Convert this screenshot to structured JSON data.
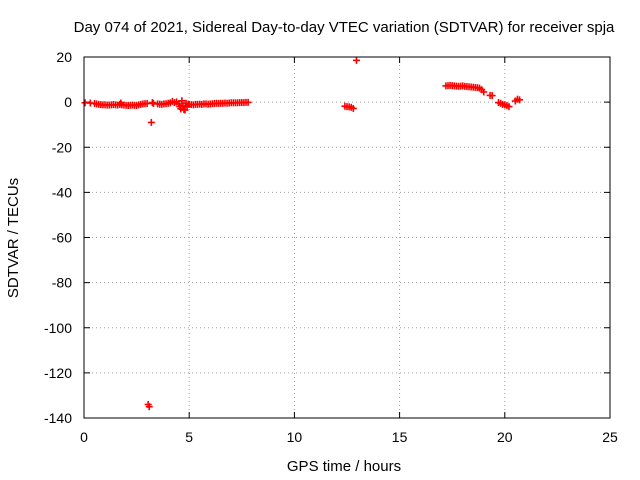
{
  "chart_data": {
    "type": "scatter",
    "title": "Day 074 of 2021, Sidereal Day-to-day VTEC variation (SDTVAR) for receiver spja",
    "xlabel": "GPS time / hours",
    "ylabel": "SDTVAR / TECUs",
    "xlim": [
      0,
      25
    ],
    "ylim": [
      -140,
      20
    ],
    "xticks": [
      0,
      5,
      10,
      15,
      20,
      25
    ],
    "yticks": [
      20,
      0,
      -20,
      -40,
      -60,
      -80,
      -100,
      -120,
      -140
    ],
    "grid": true,
    "marker": "+",
    "series": [
      {
        "name": "SDTVAR",
        "color": "#ff0000",
        "x": [
          0.05,
          0.3,
          0.5,
          0.6,
          0.7,
          0.8,
          0.9,
          1.0,
          1.1,
          1.2,
          1.3,
          1.4,
          1.5,
          1.6,
          1.7,
          1.75,
          1.8,
          1.9,
          2.0,
          2.1,
          2.2,
          2.3,
          2.4,
          2.5,
          2.6,
          2.7,
          2.8,
          2.9,
          3.0,
          3.05,
          3.1,
          3.2,
          3.25,
          3.3,
          3.5,
          3.6,
          3.7,
          3.8,
          3.9,
          4.0,
          4.1,
          4.2,
          4.3,
          4.4,
          4.5,
          4.55,
          4.6,
          4.65,
          4.7,
          4.75,
          4.8,
          4.85,
          4.9,
          4.95,
          5.0,
          5.1,
          5.2,
          5.3,
          5.4,
          5.5,
          5.6,
          5.7,
          5.8,
          5.9,
          6.0,
          6.1,
          6.2,
          6.3,
          6.4,
          6.5,
          6.6,
          6.7,
          6.8,
          6.9,
          7.0,
          7.1,
          7.2,
          7.3,
          7.4,
          7.5,
          7.6,
          7.7,
          7.8,
          12.4,
          12.5,
          12.6,
          12.7,
          12.8,
          12.95,
          17.2,
          17.3,
          17.4,
          17.5,
          17.6,
          17.7,
          17.8,
          17.9,
          18.0,
          18.1,
          18.2,
          18.3,
          18.4,
          18.5,
          18.6,
          18.7,
          18.8,
          18.9,
          19.0,
          19.3,
          19.4,
          19.7,
          19.8,
          19.9,
          20.0,
          20.1,
          20.2,
          20.5,
          20.6,
          20.7
        ],
        "y": [
          -0.3,
          -0.4,
          -0.6,
          -0.8,
          -1.0,
          -1.1,
          -1.2,
          -1.2,
          -1.3,
          -1.3,
          -1.2,
          -1.1,
          -1.2,
          -1.3,
          -1.0,
          -0.4,
          -1.2,
          -1.3,
          -1.4,
          -1.5,
          -1.4,
          -1.3,
          -1.4,
          -1.5,
          -1.2,
          -1.0,
          -0.8,
          -0.7,
          -0.6,
          -134.0,
          -135.0,
          -9.0,
          -0.2,
          -0.6,
          -0.8,
          -0.9,
          -1.0,
          -0.8,
          -0.7,
          -0.5,
          -0.3,
          0.3,
          -0.2,
          0.1,
          -0.8,
          -2.0,
          -3.0,
          0.6,
          -1.5,
          -3.3,
          -3.5,
          -0.5,
          -2.0,
          -0.9,
          -1.0,
          -1.1,
          -1.2,
          -1.0,
          -1.0,
          -0.9,
          -1.0,
          -0.8,
          -0.8,
          -0.9,
          -0.8,
          -0.7,
          -0.6,
          -0.5,
          -0.6,
          -0.5,
          -0.5,
          -0.4,
          -0.5,
          -0.4,
          -0.3,
          -0.3,
          -0.3,
          -0.3,
          -0.2,
          -0.2,
          -0.2,
          -0.1,
          -0.1,
          -1.8,
          -2.0,
          -2.1,
          -2.3,
          -2.8,
          18.5,
          7.2,
          7.3,
          7.4,
          7.3,
          7.2,
          7.1,
          7.0,
          7.1,
          7.2,
          7.0,
          6.9,
          6.8,
          6.7,
          6.6,
          6.5,
          6.4,
          6.2,
          5.5,
          4.5,
          3.0,
          2.9,
          -0.2,
          -0.5,
          -1.0,
          -1.2,
          -1.5,
          -2.0,
          0.5,
          1.3,
          1.0
        ]
      }
    ]
  }
}
